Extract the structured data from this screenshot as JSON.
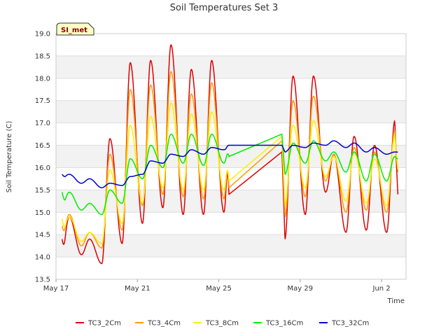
{
  "chart_data": {
    "type": "line",
    "title": "Soil Temperatures Set 3",
    "xlabel": "Time",
    "ylabel": "Soil Temperature (C)",
    "annotation": "SI_met",
    "x_range_days": [
      0,
      17.2
    ],
    "ylim": [
      13.5,
      19.0
    ],
    "yticks": [
      13.5,
      14.0,
      14.5,
      15.0,
      15.5,
      16.0,
      16.5,
      17.0,
      17.5,
      18.0,
      18.5,
      19.0
    ],
    "xticks": [
      {
        "label": "May 17",
        "day": 0
      },
      {
        "label": "May 21",
        "day": 4
      },
      {
        "label": "May 25",
        "day": 8
      },
      {
        "label": "May 29",
        "day": 12
      },
      {
        "label": "Jun 2",
        "day": 16
      }
    ],
    "grid": true,
    "legend_position": "bottom",
    "x_start_day": 0.3,
    "gap": [
      8.5,
      11.1
    ],
    "x_end_day": 16.8,
    "series": [
      {
        "name": "TC3_2Cm",
        "color": "#dd0000",
        "start_value": 14.4,
        "end_value": 15.4,
        "gap_start_value": 15.4,
        "gap_end_value": 16.35,
        "daily": [
          {
            "min": 13.95,
            "max": 14.9
          },
          {
            "min": 14.05,
            "max": 14.4
          },
          {
            "min": 13.85,
            "max": 16.65
          },
          {
            "min": 14.3,
            "max": 18.35
          },
          {
            "min": 14.75,
            "max": 18.4
          },
          {
            "min": 15.1,
            "max": 18.75
          },
          {
            "min": 14.95,
            "max": 18.2
          },
          {
            "min": 14.95,
            "max": 18.4
          },
          {
            "min": 15.0,
            "max": 18.3
          },
          {
            "min": 15.4,
            "max": 15.4
          },
          {
            "min": 15.2,
            "max": 17.95
          },
          {
            "min": 14.4,
            "max": 18.05
          },
          {
            "min": 14.95,
            "max": 18.05
          },
          {
            "min": 15.45,
            "max": 16.3
          },
          {
            "min": 14.55,
            "max": 16.7
          },
          {
            "min": 14.6,
            "max": 16.5
          },
          {
            "min": 14.55,
            "max": 17.05
          }
        ]
      },
      {
        "name": "TC3_4Cm",
        "color": "#ff9900",
        "start_value": 14.7,
        "end_value": 15.9,
        "gap_start_value": 15.55,
        "gap_end_value": 16.6,
        "daily": [
          {
            "min": 14.35,
            "max": 14.95
          },
          {
            "min": 14.25,
            "max": 14.55
          },
          {
            "min": 14.2,
            "max": 16.3
          },
          {
            "min": 14.6,
            "max": 17.75
          },
          {
            "min": 15.15,
            "max": 17.85
          },
          {
            "min": 15.4,
            "max": 18.15
          },
          {
            "min": 15.35,
            "max": 17.65
          },
          {
            "min": 15.3,
            "max": 17.9
          },
          {
            "min": 15.3,
            "max": 17.85
          },
          {
            "min": 15.55,
            "max": 15.55
          },
          {
            "min": 15.4,
            "max": 17.4
          },
          {
            "min": 14.9,
            "max": 17.5
          },
          {
            "min": 15.35,
            "max": 17.6
          },
          {
            "min": 15.7,
            "max": 16.3
          },
          {
            "min": 15.0,
            "max": 16.45
          },
          {
            "min": 15.05,
            "max": 16.35
          },
          {
            "min": 15.0,
            "max": 16.85
          }
        ]
      },
      {
        "name": "TC3_8Cm",
        "color": "#ffee00",
        "start_value": 14.85,
        "end_value": 15.95,
        "gap_start_value": 15.7,
        "gap_end_value": 16.7,
        "daily": [
          {
            "min": 14.45,
            "max": 14.9
          },
          {
            "min": 14.35,
            "max": 14.55
          },
          {
            "min": 14.3,
            "max": 15.95
          },
          {
            "min": 14.75,
            "max": 16.95
          },
          {
            "min": 15.2,
            "max": 17.15
          },
          {
            "min": 15.55,
            "max": 17.45
          },
          {
            "min": 15.5,
            "max": 17.2
          },
          {
            "min": 15.5,
            "max": 17.25
          },
          {
            "min": 15.5,
            "max": 17.2
          },
          {
            "min": 15.7,
            "max": 15.7
          },
          {
            "min": 15.55,
            "max": 16.95
          },
          {
            "min": 15.15,
            "max": 16.95
          },
          {
            "min": 15.55,
            "max": 17.05
          },
          {
            "min": 15.8,
            "max": 16.25
          },
          {
            "min": 15.25,
            "max": 16.35
          },
          {
            "min": 15.2,
            "max": 16.2
          },
          {
            "min": 15.15,
            "max": 16.7
          }
        ]
      },
      {
        "name": "TC3_16Cm",
        "color": "#00ee00",
        "start_value": 15.45,
        "end_value": 16.2,
        "gap_start_value": 16.25,
        "gap_end_value": 16.75,
        "daily": [
          {
            "min": 15.1,
            "max": 15.45
          },
          {
            "min": 15.05,
            "max": 15.2
          },
          {
            "min": 14.95,
            "max": 15.5
          },
          {
            "min": 15.2,
            "max": 16.2
          },
          {
            "min": 15.75,
            "max": 16.5
          },
          {
            "min": 16.0,
            "max": 16.75
          },
          {
            "min": 16.1,
            "max": 16.75
          },
          {
            "min": 16.05,
            "max": 16.75
          },
          {
            "min": 16.1,
            "max": 16.75
          },
          {
            "min": 16.25,
            "max": 16.25
          },
          {
            "min": 16.2,
            "max": 16.6
          },
          {
            "min": 15.85,
            "max": 16.55
          },
          {
            "min": 16.1,
            "max": 16.6
          },
          {
            "min": 16.15,
            "max": 16.35
          },
          {
            "min": 15.9,
            "max": 16.35
          },
          {
            "min": 15.7,
            "max": 16.3
          },
          {
            "min": 15.7,
            "max": 16.25
          }
        ]
      },
      {
        "name": "TC3_32Cm",
        "color": "#0000cc",
        "start_value": 15.85,
        "end_value": 16.35,
        "gap_start_value": 16.5,
        "gap_end_value": 16.5,
        "daily": [
          {
            "min": 15.75,
            "max": 15.85
          },
          {
            "min": 15.65,
            "max": 15.75
          },
          {
            "min": 15.55,
            "max": 15.65
          },
          {
            "min": 15.6,
            "max": 15.8
          },
          {
            "min": 15.85,
            "max": 16.15
          },
          {
            "min": 16.1,
            "max": 16.3
          },
          {
            "min": 16.25,
            "max": 16.4
          },
          {
            "min": 16.3,
            "max": 16.45
          },
          {
            "min": 16.4,
            "max": 16.55
          },
          {
            "min": 16.5,
            "max": 16.5
          },
          {
            "min": 16.5,
            "max": 16.55
          },
          {
            "min": 16.35,
            "max": 16.5
          },
          {
            "min": 16.45,
            "max": 16.55
          },
          {
            "min": 16.5,
            "max": 16.6
          },
          {
            "min": 16.45,
            "max": 16.55
          },
          {
            "min": 16.35,
            "max": 16.45
          },
          {
            "min": 16.3,
            "max": 16.35
          }
        ]
      }
    ]
  }
}
